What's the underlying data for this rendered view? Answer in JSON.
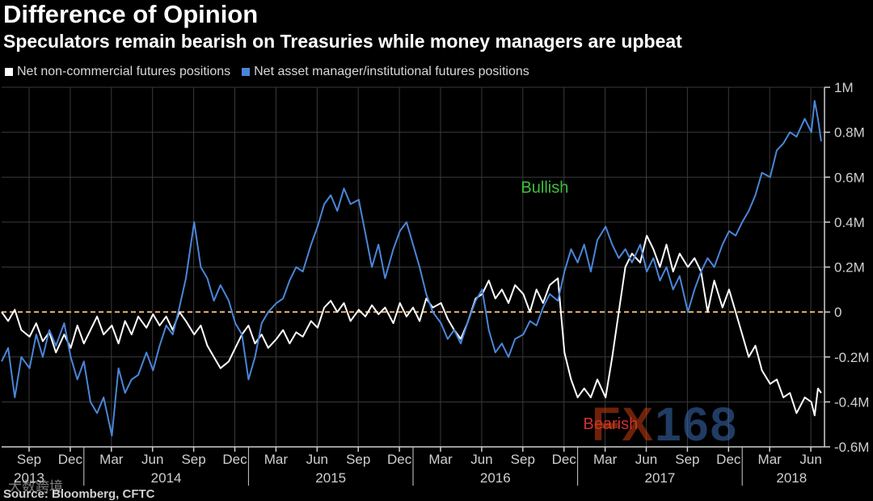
{
  "header": {
    "title": "Difference of Opinion",
    "subtitle": "Speculators remain bearish on Treasuries while money managers are upbeat"
  },
  "colors": {
    "background": "#000000",
    "white_series": "#ffffff",
    "blue_series": "#4a86d8",
    "zero_line": "#e8b070",
    "bullish": "#3fbf3f",
    "bearish": "#d03030",
    "axis": "#cfcfcf",
    "grid": "#3a3a3a"
  },
  "annotations": {
    "bullish": "Bullish",
    "bearish": "Bearish"
  },
  "footer": {
    "source": "Source: Bloomberg, CFTC"
  },
  "watermark": {
    "fx_letters": "FX",
    "fx_digits": "168",
    "cn_text": "大数跨境"
  },
  "chart_data": {
    "type": "line",
    "title": "Difference of Opinion",
    "subtitle": "Speculators remain bearish on Treasuries while money managers are upbeat",
    "xlabel": "",
    "ylabel": "",
    "x_range": [
      2013.5,
      2018.5
    ],
    "ylim": [
      -0.6,
      1.0
    ],
    "y_unit": "M",
    "y_ticks": [
      {
        "value": 1.0,
        "label": "1M"
      },
      {
        "value": 0.8,
        "label": "0.8M"
      },
      {
        "value": 0.6,
        "label": "0.6M"
      },
      {
        "value": 0.4,
        "label": "0.4M"
      },
      {
        "value": 0.2,
        "label": "0.2M"
      },
      {
        "value": 0.0,
        "label": "0"
      },
      {
        "value": -0.2,
        "label": "-0.2M"
      },
      {
        "value": -0.4,
        "label": "-0.4M"
      },
      {
        "value": -0.6,
        "label": "-0.6M"
      }
    ],
    "x_month_ticks": [
      {
        "x": 2013.667,
        "label": "Sep"
      },
      {
        "x": 2013.917,
        "label": "Dec"
      },
      {
        "x": 2014.167,
        "label": "Mar"
      },
      {
        "x": 2014.417,
        "label": "Jun"
      },
      {
        "x": 2014.667,
        "label": "Sep"
      },
      {
        "x": 2014.917,
        "label": "Dec"
      },
      {
        "x": 2015.167,
        "label": "Mar"
      },
      {
        "x": 2015.417,
        "label": "Jun"
      },
      {
        "x": 2015.667,
        "label": "Sep"
      },
      {
        "x": 2015.917,
        "label": "Dec"
      },
      {
        "x": 2016.167,
        "label": "Mar"
      },
      {
        "x": 2016.417,
        "label": "Jun"
      },
      {
        "x": 2016.667,
        "label": "Sep"
      },
      {
        "x": 2016.917,
        "label": "Dec"
      },
      {
        "x": 2017.167,
        "label": "Mar"
      },
      {
        "x": 2017.417,
        "label": "Jun"
      },
      {
        "x": 2017.667,
        "label": "Sep"
      },
      {
        "x": 2017.917,
        "label": "Dec"
      },
      {
        "x": 2018.167,
        "label": "Mar"
      },
      {
        "x": 2018.417,
        "label": "Jun"
      }
    ],
    "x_year_labels": [
      {
        "x": 2013.667,
        "label": "2013"
      },
      {
        "x": 2014.5,
        "label": "2014"
      },
      {
        "x": 2015.5,
        "label": "2015"
      },
      {
        "x": 2016.5,
        "label": "2016"
      },
      {
        "x": 2017.5,
        "label": "2017"
      },
      {
        "x": 2018.3,
        "label": "2018"
      }
    ],
    "x_year_boundaries": [
      2014.0,
      2015.0,
      2016.0,
      2017.0,
      2018.0
    ],
    "reference_line": {
      "y": 0,
      "style": "dashed"
    },
    "grid": true,
    "legend_position": "top-left",
    "annotations": [
      {
        "text": "Bullish",
        "x": 2016.8,
        "y": 0.53
      },
      {
        "text": "Bearish",
        "x": 2017.2,
        "y": -0.52
      }
    ],
    "series": [
      {
        "name": "Net non-commercial futures positions",
        "color": "#ffffff",
        "points": [
          [
            2013.5,
            0.0
          ],
          [
            2013.54,
            -0.04
          ],
          [
            2013.58,
            0.01
          ],
          [
            2013.62,
            -0.08
          ],
          [
            2013.67,
            -0.11
          ],
          [
            2013.71,
            -0.05
          ],
          [
            2013.75,
            -0.13
          ],
          [
            2013.79,
            -0.09
          ],
          [
            2013.83,
            -0.18
          ],
          [
            2013.88,
            -0.1
          ],
          [
            2013.92,
            -0.16
          ],
          [
            2013.96,
            -0.06
          ],
          [
            2014.0,
            -0.14
          ],
          [
            2014.04,
            -0.08
          ],
          [
            2014.08,
            -0.02
          ],
          [
            2014.12,
            -0.1
          ],
          [
            2014.17,
            -0.06
          ],
          [
            2014.21,
            -0.14
          ],
          [
            2014.25,
            -0.04
          ],
          [
            2014.29,
            -0.1
          ],
          [
            2014.33,
            -0.02
          ],
          [
            2014.38,
            -0.07
          ],
          [
            2014.42,
            -0.01
          ],
          [
            2014.46,
            -0.06
          ],
          [
            2014.5,
            -0.02
          ],
          [
            2014.54,
            -0.08
          ],
          [
            2014.58,
            0.0
          ],
          [
            2014.62,
            -0.04
          ],
          [
            2014.67,
            -0.1
          ],
          [
            2014.71,
            -0.06
          ],
          [
            2014.75,
            -0.15
          ],
          [
            2014.79,
            -0.2
          ],
          [
            2014.83,
            -0.25
          ],
          [
            2014.88,
            -0.22
          ],
          [
            2014.92,
            -0.16
          ],
          [
            2014.96,
            -0.1
          ],
          [
            2015.0,
            -0.06
          ],
          [
            2015.04,
            -0.14
          ],
          [
            2015.08,
            -0.1
          ],
          [
            2015.12,
            -0.16
          ],
          [
            2015.17,
            -0.12
          ],
          [
            2015.21,
            -0.08
          ],
          [
            2015.25,
            -0.14
          ],
          [
            2015.29,
            -0.09
          ],
          [
            2015.33,
            -0.11
          ],
          [
            2015.38,
            -0.04
          ],
          [
            2015.42,
            -0.07
          ],
          [
            2015.46,
            0.02
          ],
          [
            2015.5,
            0.05
          ],
          [
            2015.54,
            0.0
          ],
          [
            2015.58,
            0.04
          ],
          [
            2015.62,
            -0.04
          ],
          [
            2015.67,
            0.01
          ],
          [
            2015.71,
            -0.02
          ],
          [
            2015.75,
            0.03
          ],
          [
            2015.79,
            -0.01
          ],
          [
            2015.83,
            0.02
          ],
          [
            2015.88,
            -0.05
          ],
          [
            2015.92,
            0.04
          ],
          [
            2015.96,
            -0.02
          ],
          [
            2016.0,
            0.02
          ],
          [
            2016.04,
            -0.04
          ],
          [
            2016.08,
            0.06
          ],
          [
            2016.12,
            0.02
          ],
          [
            2016.17,
            0.04
          ],
          [
            2016.21,
            -0.03
          ],
          [
            2016.25,
            -0.08
          ],
          [
            2016.29,
            -0.12
          ],
          [
            2016.33,
            -0.05
          ],
          [
            2016.38,
            0.06
          ],
          [
            2016.42,
            0.08
          ],
          [
            2016.46,
            0.14
          ],
          [
            2016.5,
            0.06
          ],
          [
            2016.54,
            0.1
          ],
          [
            2016.58,
            0.04
          ],
          [
            2016.62,
            0.12
          ],
          [
            2016.67,
            0.08
          ],
          [
            2016.71,
            0.0
          ],
          [
            2016.75,
            0.1
          ],
          [
            2016.79,
            0.04
          ],
          [
            2016.83,
            0.12
          ],
          [
            2016.88,
            0.15
          ],
          [
            2016.92,
            -0.18
          ],
          [
            2016.96,
            -0.3
          ],
          [
            2017.0,
            -0.38
          ],
          [
            2017.04,
            -0.34
          ],
          [
            2017.08,
            -0.38
          ],
          [
            2017.12,
            -0.3
          ],
          [
            2017.17,
            -0.38
          ],
          [
            2017.21,
            -0.2
          ],
          [
            2017.25,
            0.0
          ],
          [
            2017.29,
            0.2
          ],
          [
            2017.33,
            0.26
          ],
          [
            2017.38,
            0.22
          ],
          [
            2017.42,
            0.34
          ],
          [
            2017.46,
            0.28
          ],
          [
            2017.5,
            0.2
          ],
          [
            2017.54,
            0.3
          ],
          [
            2017.58,
            0.18
          ],
          [
            2017.62,
            0.26
          ],
          [
            2017.67,
            0.2
          ],
          [
            2017.71,
            0.24
          ],
          [
            2017.75,
            0.18
          ],
          [
            2017.79,
            0.0
          ],
          [
            2017.83,
            0.14
          ],
          [
            2017.88,
            0.02
          ],
          [
            2017.92,
            0.1
          ],
          [
            2017.96,
            0.0
          ],
          [
            2018.0,
            -0.1
          ],
          [
            2018.04,
            -0.2
          ],
          [
            2018.08,
            -0.15
          ],
          [
            2018.12,
            -0.26
          ],
          [
            2018.17,
            -0.32
          ],
          [
            2018.21,
            -0.3
          ],
          [
            2018.25,
            -0.38
          ],
          [
            2018.29,
            -0.36
          ],
          [
            2018.33,
            -0.45
          ],
          [
            2018.38,
            -0.38
          ],
          [
            2018.42,
            -0.4
          ],
          [
            2018.44,
            -0.46
          ],
          [
            2018.46,
            -0.34
          ],
          [
            2018.48,
            -0.36
          ]
        ]
      },
      {
        "name": "Net asset manager/institutional futures positions",
        "color": "#4a86d8",
        "points": [
          [
            2013.5,
            -0.22
          ],
          [
            2013.54,
            -0.16
          ],
          [
            2013.58,
            -0.38
          ],
          [
            2013.62,
            -0.2
          ],
          [
            2013.67,
            -0.25
          ],
          [
            2013.71,
            -0.1
          ],
          [
            2013.75,
            -0.2
          ],
          [
            2013.79,
            -0.08
          ],
          [
            2013.83,
            -0.15
          ],
          [
            2013.88,
            -0.05
          ],
          [
            2013.92,
            -0.2
          ],
          [
            2013.96,
            -0.3
          ],
          [
            2014.0,
            -0.22
          ],
          [
            2014.04,
            -0.4
          ],
          [
            2014.08,
            -0.45
          ],
          [
            2014.12,
            -0.38
          ],
          [
            2014.17,
            -0.55
          ],
          [
            2014.21,
            -0.25
          ],
          [
            2014.25,
            -0.36
          ],
          [
            2014.29,
            -0.3
          ],
          [
            2014.33,
            -0.28
          ],
          [
            2014.38,
            -0.18
          ],
          [
            2014.42,
            -0.26
          ],
          [
            2014.46,
            -0.15
          ],
          [
            2014.5,
            -0.06
          ],
          [
            2014.54,
            -0.1
          ],
          [
            2014.58,
            0.02
          ],
          [
            2014.62,
            0.15
          ],
          [
            2014.67,
            0.4
          ],
          [
            2014.71,
            0.2
          ],
          [
            2014.75,
            0.15
          ],
          [
            2014.79,
            0.05
          ],
          [
            2014.83,
            0.12
          ],
          [
            2014.88,
            0.05
          ],
          [
            2014.92,
            -0.05
          ],
          [
            2014.96,
            -0.1
          ],
          [
            2015.0,
            -0.3
          ],
          [
            2015.04,
            -0.2
          ],
          [
            2015.08,
            -0.05
          ],
          [
            2015.12,
            0.0
          ],
          [
            2015.17,
            0.04
          ],
          [
            2015.21,
            0.06
          ],
          [
            2015.25,
            0.14
          ],
          [
            2015.29,
            0.2
          ],
          [
            2015.33,
            0.18
          ],
          [
            2015.38,
            0.3
          ],
          [
            2015.42,
            0.38
          ],
          [
            2015.46,
            0.48
          ],
          [
            2015.5,
            0.52
          ],
          [
            2015.54,
            0.45
          ],
          [
            2015.58,
            0.55
          ],
          [
            2015.62,
            0.48
          ],
          [
            2015.67,
            0.5
          ],
          [
            2015.71,
            0.35
          ],
          [
            2015.75,
            0.2
          ],
          [
            2015.79,
            0.3
          ],
          [
            2015.83,
            0.15
          ],
          [
            2015.88,
            0.28
          ],
          [
            2015.92,
            0.36
          ],
          [
            2015.96,
            0.4
          ],
          [
            2016.0,
            0.3
          ],
          [
            2016.04,
            0.2
          ],
          [
            2016.08,
            0.08
          ],
          [
            2016.12,
            0.0
          ],
          [
            2016.17,
            -0.05
          ],
          [
            2016.21,
            -0.12
          ],
          [
            2016.25,
            -0.08
          ],
          [
            2016.29,
            -0.14
          ],
          [
            2016.33,
            -0.05
          ],
          [
            2016.38,
            0.05
          ],
          [
            2016.42,
            0.1
          ],
          [
            2016.46,
            -0.08
          ],
          [
            2016.5,
            -0.18
          ],
          [
            2016.54,
            -0.14
          ],
          [
            2016.58,
            -0.2
          ],
          [
            2016.62,
            -0.12
          ],
          [
            2016.67,
            -0.1
          ],
          [
            2016.71,
            -0.04
          ],
          [
            2016.75,
            -0.06
          ],
          [
            2016.79,
            0.02
          ],
          [
            2016.83,
            0.08
          ],
          [
            2016.88,
            0.05
          ],
          [
            2016.92,
            0.18
          ],
          [
            2016.96,
            0.28
          ],
          [
            2017.0,
            0.22
          ],
          [
            2017.04,
            0.3
          ],
          [
            2017.08,
            0.18
          ],
          [
            2017.12,
            0.32
          ],
          [
            2017.17,
            0.38
          ],
          [
            2017.21,
            0.3
          ],
          [
            2017.25,
            0.24
          ],
          [
            2017.29,
            0.28
          ],
          [
            2017.33,
            0.22
          ],
          [
            2017.38,
            0.3
          ],
          [
            2017.42,
            0.18
          ],
          [
            2017.46,
            0.24
          ],
          [
            2017.5,
            0.14
          ],
          [
            2017.54,
            0.2
          ],
          [
            2017.58,
            0.1
          ],
          [
            2017.62,
            0.16
          ],
          [
            2017.67,
            0.0
          ],
          [
            2017.71,
            0.1
          ],
          [
            2017.75,
            0.18
          ],
          [
            2017.79,
            0.24
          ],
          [
            2017.83,
            0.2
          ],
          [
            2017.88,
            0.3
          ],
          [
            2017.92,
            0.36
          ],
          [
            2017.96,
            0.34
          ],
          [
            2018.0,
            0.4
          ],
          [
            2018.04,
            0.45
          ],
          [
            2018.08,
            0.52
          ],
          [
            2018.12,
            0.62
          ],
          [
            2018.17,
            0.6
          ],
          [
            2018.21,
            0.72
          ],
          [
            2018.25,
            0.75
          ],
          [
            2018.29,
            0.8
          ],
          [
            2018.33,
            0.78
          ],
          [
            2018.38,
            0.86
          ],
          [
            2018.42,
            0.8
          ],
          [
            2018.44,
            0.94
          ],
          [
            2018.46,
            0.86
          ],
          [
            2018.48,
            0.76
          ]
        ]
      }
    ]
  }
}
